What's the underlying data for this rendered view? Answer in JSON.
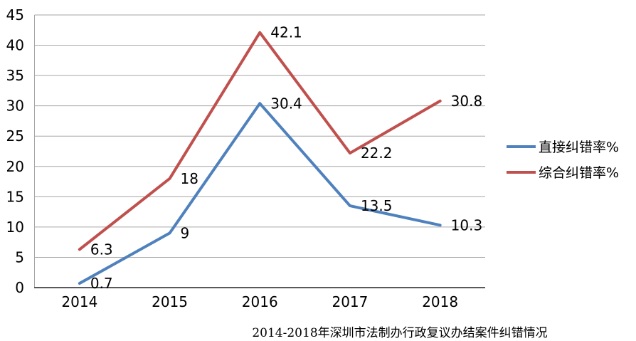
{
  "chart_data": {
    "type": "line",
    "title": "2014-2018年深圳市法制办行政复议办结案件纠错情况",
    "categories": [
      "2014",
      "2015",
      "2016",
      "2017",
      "2018"
    ],
    "series": [
      {
        "name": "直接纠错率%",
        "color": "#4F81BD",
        "values": [
          0.7,
          9,
          30.4,
          13.5,
          10.3
        ]
      },
      {
        "name": "综合纠错率%",
        "color": "#C0504D",
        "values": [
          6.3,
          18,
          42.1,
          22.2,
          30.8
        ]
      }
    ],
    "ylim": [
      0,
      45
    ],
    "ytick_step": 5,
    "ytick_labels": [
      "0",
      "5",
      "10",
      "15",
      "20",
      "25",
      "30",
      "35",
      "40",
      "45"
    ],
    "grid": "horizontal",
    "data_labels": true,
    "legend_position": "right",
    "colors": {
      "grid": "#A6A6A6",
      "axis": "#595959",
      "plot_border": "#A6A6A6",
      "text": "#000000"
    }
  }
}
